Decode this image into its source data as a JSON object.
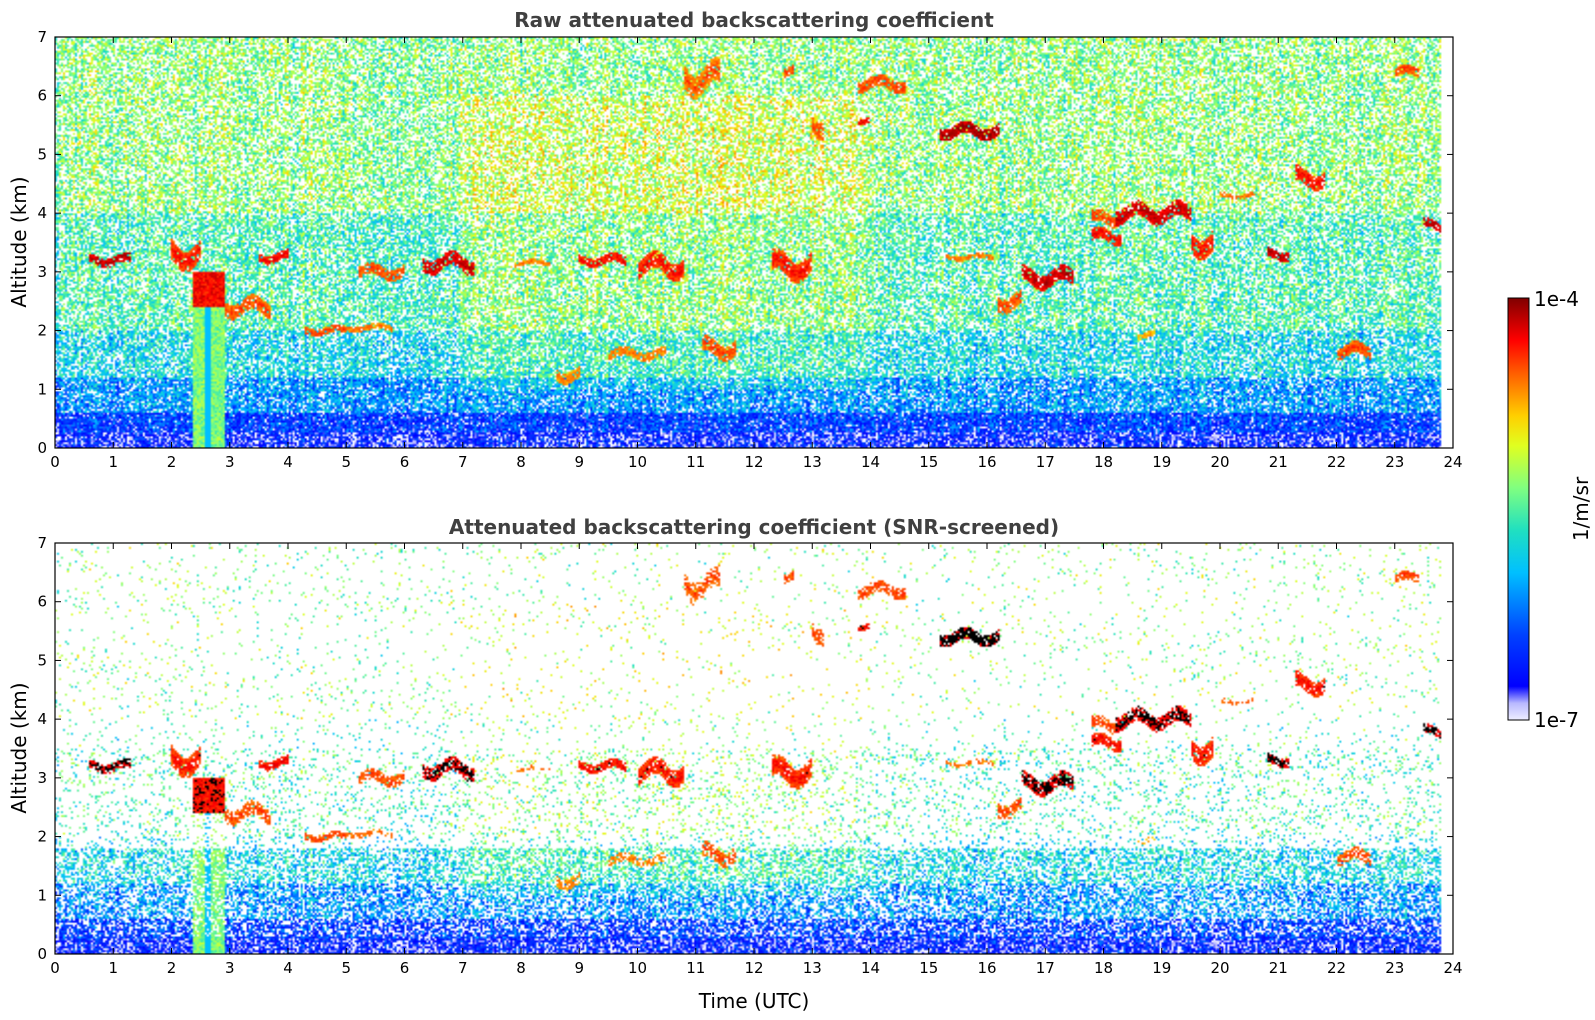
{
  "chart_data": [
    {
      "type": "heatmap",
      "title": "Raw attenuated backscattering coefficient",
      "xlabel": "",
      "ylabel": "Altitude (km)",
      "xlim": [
        0,
        24
      ],
      "ylim": [
        0,
        7
      ],
      "xticks": [
        "0",
        "1",
        "2",
        "3",
        "4",
        "5",
        "6",
        "7",
        "8",
        "9",
        "10",
        "11",
        "12",
        "13",
        "14",
        "15",
        "16",
        "17",
        "18",
        "19",
        "20",
        "21",
        "22",
        "23",
        "24"
      ],
      "yticks": [
        "0",
        "1",
        "2",
        "3",
        "4",
        "5",
        "6",
        "7"
      ],
      "data_end_time": 23.8,
      "color_scale": "log",
      "background_noise": [
        {
          "alt_max": 0.25,
          "level": 0.1,
          "fill": 1.0
        },
        {
          "alt_max": 0.6,
          "level": 0.18,
          "fill": 0.95
        },
        {
          "alt_max": 1.2,
          "level": 0.3,
          "fill": 0.8
        },
        {
          "alt_max": 2.0,
          "level": 0.4,
          "fill": 0.7
        },
        {
          "alt_max": 4.0,
          "level": 0.48,
          "fill": 0.65
        },
        {
          "alt_max": 7.0,
          "level": 0.55,
          "fill": 0.6
        }
      ],
      "cloud_features": [
        {
          "t0": 0.6,
          "t1": 1.3,
          "alt": 3.2,
          "thick": 0.15,
          "level": 0.95
        },
        {
          "t0": 2.0,
          "t1": 2.5,
          "alt": 3.3,
          "thick": 0.35,
          "level": 0.9
        },
        {
          "t0": 2.7,
          "t1": 3.7,
          "alt": 2.4,
          "thick": 0.25,
          "level": 0.85
        },
        {
          "t0": 3.5,
          "t1": 4.0,
          "alt": 3.25,
          "thick": 0.15,
          "level": 0.9
        },
        {
          "t0": 4.3,
          "t1": 5.0,
          "alt": 2.0,
          "thick": 0.12,
          "level": 0.85
        },
        {
          "t0": 5.0,
          "t1": 5.8,
          "alt": 2.05,
          "thick": 0.1,
          "level": 0.8
        },
        {
          "t0": 5.2,
          "t1": 6.0,
          "alt": 3.0,
          "thick": 0.2,
          "level": 0.85
        },
        {
          "t0": 6.3,
          "t1": 7.2,
          "alt": 3.15,
          "thick": 0.25,
          "level": 0.95
        },
        {
          "t0": 7.9,
          "t1": 8.5,
          "alt": 3.15,
          "thick": 0.08,
          "level": 0.8
        },
        {
          "t0": 8.6,
          "t1": 9.0,
          "alt": 1.25,
          "thick": 0.2,
          "level": 0.8
        },
        {
          "t0": 9.0,
          "t1": 9.8,
          "alt": 3.2,
          "thick": 0.15,
          "level": 0.9
        },
        {
          "t0": 9.5,
          "t1": 10.5,
          "alt": 1.6,
          "thick": 0.15,
          "level": 0.8
        },
        {
          "t0": 10.0,
          "t1": 10.8,
          "alt": 3.1,
          "thick": 0.3,
          "level": 0.9
        },
        {
          "t0": 11.1,
          "t1": 11.7,
          "alt": 1.7,
          "thick": 0.25,
          "level": 0.85
        },
        {
          "t0": 10.8,
          "t1": 11.4,
          "alt": 6.3,
          "thick": 0.4,
          "level": 0.85
        },
        {
          "t0": 12.3,
          "t1": 13.0,
          "alt": 3.1,
          "thick": 0.35,
          "level": 0.9
        },
        {
          "t0": 12.5,
          "t1": 12.7,
          "alt": 6.4,
          "thick": 0.15,
          "level": 0.85
        },
        {
          "t0": 13.0,
          "t1": 13.2,
          "alt": 5.5,
          "thick": 0.3,
          "level": 0.85
        },
        {
          "t0": 13.8,
          "t1": 14.6,
          "alt": 6.2,
          "thick": 0.2,
          "level": 0.85
        },
        {
          "t0": 13.8,
          "t1": 14.0,
          "alt": 5.6,
          "thick": 0.1,
          "level": 0.9
        },
        {
          "t0": 15.2,
          "t1": 16.2,
          "alt": 5.4,
          "thick": 0.2,
          "level": 0.97
        },
        {
          "t0": 15.3,
          "t1": 16.1,
          "alt": 3.25,
          "thick": 0.08,
          "level": 0.8
        },
        {
          "t0": 16.2,
          "t1": 16.6,
          "alt": 2.5,
          "thick": 0.25,
          "level": 0.85
        },
        {
          "t0": 16.6,
          "t1": 17.5,
          "alt": 2.9,
          "thick": 0.25,
          "level": 0.95
        },
        {
          "t0": 17.8,
          "t1": 18.3,
          "alt": 3.6,
          "thick": 0.2,
          "level": 0.9
        },
        {
          "t0": 17.8,
          "t1": 18.2,
          "alt": 3.9,
          "thick": 0.2,
          "level": 0.85
        },
        {
          "t0": 18.2,
          "t1": 19.5,
          "alt": 4.0,
          "thick": 0.25,
          "level": 0.95
        },
        {
          "t0": 19.5,
          "t1": 19.9,
          "alt": 3.5,
          "thick": 0.35,
          "level": 0.9
        },
        {
          "t0": 20.0,
          "t1": 20.6,
          "alt": 4.3,
          "thick": 0.08,
          "level": 0.8
        },
        {
          "t0": 20.8,
          "t1": 21.2,
          "alt": 3.3,
          "thick": 0.15,
          "level": 0.95
        },
        {
          "t0": 21.3,
          "t1": 21.8,
          "alt": 4.6,
          "thick": 0.25,
          "level": 0.9
        },
        {
          "t0": 22.0,
          "t1": 22.6,
          "alt": 1.65,
          "thick": 0.2,
          "level": 0.85
        },
        {
          "t0": 23.0,
          "t1": 23.4,
          "alt": 6.4,
          "thick": 0.15,
          "level": 0.85
        },
        {
          "t0": 23.5,
          "t1": 23.8,
          "alt": 3.8,
          "thick": 0.15,
          "level": 0.95
        },
        {
          "t0": 18.6,
          "t1": 18.9,
          "alt": 1.9,
          "thick": 0.1,
          "level": 0.75
        }
      ],
      "aerosol_plume": {
        "t0": 2.35,
        "t1": 2.9,
        "alt_top": 3.0,
        "level": 0.55
      },
      "screened": false
    },
    {
      "type": "heatmap",
      "title": "Attenuated backscattering coefficient (SNR-screened)",
      "xlabel": "Time (UTC)",
      "ylabel": "Altitude (km)",
      "xlim": [
        0,
        24
      ],
      "ylim": [
        0,
        7
      ],
      "xticks": [
        "0",
        "1",
        "2",
        "3",
        "4",
        "5",
        "6",
        "7",
        "8",
        "9",
        "10",
        "11",
        "12",
        "13",
        "14",
        "15",
        "16",
        "17",
        "18",
        "19",
        "20",
        "21",
        "22",
        "23",
        "24"
      ],
      "yticks": [
        "0",
        "1",
        "2",
        "3",
        "4",
        "5",
        "6",
        "7"
      ],
      "data_end_time": 23.8,
      "color_scale": "log",
      "screened": true
    }
  ],
  "colorbar": {
    "label": "1/m/sr",
    "max_label": "1e-4",
    "min_label": "1e-7",
    "colormap": "jet"
  },
  "colors": {
    "title": "#404040",
    "axes": "#000000",
    "background": "#ffffff",
    "strong_return": "#7f0000",
    "saturated": "#000000"
  }
}
